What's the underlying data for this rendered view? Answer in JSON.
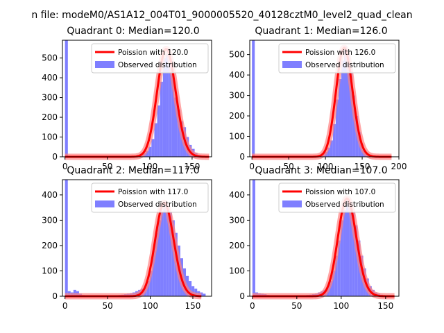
{
  "figure": {
    "suptitle": "n file: modeM0/AS1A12_004T01_9000005520_40128cztM0_level2_quad_clean"
  },
  "colors": {
    "hist": "#7f7fff",
    "poisson": "#ff0000",
    "poisson_glow": "#ff8080"
  },
  "chart_data": [
    {
      "type": "bar",
      "title": "Quadrant 0: Median=120.0",
      "legend": {
        "placement": "top-right",
        "line_label": "Poission with 120.0",
        "bar_label": "Observed distribution"
      },
      "xlim": [
        -3,
        173
      ],
      "ylim": [
        0,
        590
      ],
      "xticks": [
        0,
        50,
        100,
        150
      ],
      "yticks": [
        0,
        100,
        200,
        300,
        400,
        500
      ],
      "bin_width": 3.4,
      "hist": [
        [
          0,
          590
        ],
        [
          3.4,
          0
        ],
        [
          6.8,
          0
        ],
        [
          10.2,
          0
        ],
        [
          13.6,
          0
        ],
        [
          17,
          0
        ],
        [
          20.4,
          0
        ],
        [
          23.8,
          0
        ],
        [
          27.2,
          0
        ],
        [
          30.6,
          0
        ],
        [
          34,
          0
        ],
        [
          37.4,
          0
        ],
        [
          40.8,
          0
        ],
        [
          44.2,
          0
        ],
        [
          47.6,
          0
        ],
        [
          51,
          0
        ],
        [
          54.4,
          0
        ],
        [
          57.8,
          0
        ],
        [
          61.2,
          0
        ],
        [
          64.6,
          0
        ],
        [
          68,
          0
        ],
        [
          71.4,
          0
        ],
        [
          74.8,
          0
        ],
        [
          78.2,
          2
        ],
        [
          81.6,
          5
        ],
        [
          85,
          10
        ],
        [
          88.4,
          16
        ],
        [
          91.8,
          20
        ],
        [
          95.2,
          30
        ],
        [
          98.6,
          50
        ],
        [
          102,
          90
        ],
        [
          105.4,
          170
        ],
        [
          108.8,
          260
        ],
        [
          112.2,
          380
        ],
        [
          115.6,
          500
        ],
        [
          119,
          520
        ],
        [
          122.4,
          470
        ],
        [
          125.8,
          420
        ],
        [
          129.2,
          300
        ],
        [
          132.6,
          240
        ],
        [
          136,
          180
        ],
        [
          139.4,
          150
        ],
        [
          142.8,
          100
        ],
        [
          146.2,
          60
        ],
        [
          149.6,
          40
        ],
        [
          153,
          20
        ],
        [
          156.4,
          10
        ],
        [
          159.8,
          6
        ],
        [
          163.2,
          3
        ],
        [
          166.6,
          1
        ]
      ],
      "poisson_mean": 120.0,
      "poisson_total": 15000,
      "poisson_xrange": [
        0,
        170
      ]
    },
    {
      "type": "bar",
      "title": "Quadrant 1: Median=126.0",
      "legend": {
        "placement": "top-right",
        "line_label": "Poission with 126.0",
        "bar_label": "Observed distribution"
      },
      "xlim": [
        -3,
        200
      ],
      "ylim": [
        0,
        570
      ],
      "xticks": [
        0,
        50,
        100,
        150,
        200
      ],
      "yticks": [
        0,
        100,
        200,
        300,
        400,
        500
      ],
      "bin_width": 3.8,
      "hist": [
        [
          0,
          570
        ],
        [
          3.8,
          0
        ],
        [
          7.6,
          0
        ],
        [
          11.4,
          0
        ],
        [
          15.2,
          0
        ],
        [
          19,
          0
        ],
        [
          22.8,
          0
        ],
        [
          26.6,
          0
        ],
        [
          30.4,
          0
        ],
        [
          34.2,
          0
        ],
        [
          38,
          0
        ],
        [
          41.8,
          0
        ],
        [
          45.6,
          0
        ],
        [
          49.4,
          0
        ],
        [
          53.2,
          0
        ],
        [
          57,
          0
        ],
        [
          60.8,
          0
        ],
        [
          64.6,
          0
        ],
        [
          68.4,
          0
        ],
        [
          72.2,
          0
        ],
        [
          76,
          0
        ],
        [
          79.8,
          0
        ],
        [
          83.6,
          2
        ],
        [
          87.4,
          4
        ],
        [
          91.2,
          8
        ],
        [
          95,
          15
        ],
        [
          98.8,
          25
        ],
        [
          102.6,
          45
        ],
        [
          106.4,
          80
        ],
        [
          110.2,
          160
        ],
        [
          114,
          280
        ],
        [
          117.8,
          380
        ],
        [
          121.6,
          470
        ],
        [
          125.4,
          540
        ],
        [
          129.2,
          500
        ],
        [
          133,
          420
        ],
        [
          136.8,
          300
        ],
        [
          140.6,
          200
        ],
        [
          144.4,
          120
        ],
        [
          148.2,
          60
        ],
        [
          152,
          30
        ],
        [
          155.8,
          15
        ],
        [
          159.6,
          10
        ],
        [
          163.4,
          6
        ],
        [
          167.2,
          4
        ],
        [
          171,
          2
        ],
        [
          174.8,
          1
        ],
        [
          178.6,
          1
        ],
        [
          182.4,
          0
        ],
        [
          186.2,
          0
        ]
      ],
      "poisson_mean": 126.0,
      "poisson_total": 15000,
      "poisson_xrange": [
        0,
        190
      ]
    },
    {
      "type": "bar",
      "title": "Quadrant 2: Median=117.0",
      "legend": {
        "placement": "top-right",
        "line_label": "Poission with 117.0",
        "bar_label": "Observed distribution"
      },
      "xlim": [
        -3,
        172
      ],
      "ylim": [
        0,
        460
      ],
      "xticks": [
        0,
        50,
        100,
        150
      ],
      "yticks": [
        0,
        100,
        200,
        300,
        400
      ],
      "bin_width": 3.3,
      "hist": [
        [
          0,
          460
        ],
        [
          3.3,
          20
        ],
        [
          6.6,
          15
        ],
        [
          9.9,
          25
        ],
        [
          13.2,
          20
        ],
        [
          16.5,
          10
        ],
        [
          19.8,
          5
        ],
        [
          23.1,
          3
        ],
        [
          26.4,
          2
        ],
        [
          29.7,
          2
        ],
        [
          33,
          1
        ],
        [
          36.3,
          1
        ],
        [
          39.6,
          1
        ],
        [
          42.9,
          1
        ],
        [
          46.2,
          1
        ],
        [
          49.5,
          1
        ],
        [
          52.8,
          2
        ],
        [
          56.1,
          3
        ],
        [
          59.4,
          4
        ],
        [
          62.7,
          5
        ],
        [
          66,
          6
        ],
        [
          69.3,
          8
        ],
        [
          72.6,
          10
        ],
        [
          75.9,
          12
        ],
        [
          79.2,
          15
        ],
        [
          82.5,
          20
        ],
        [
          85.8,
          25
        ],
        [
          89.1,
          30
        ],
        [
          92.4,
          35
        ],
        [
          95.7,
          60
        ],
        [
          99,
          100
        ],
        [
          102.3,
          180
        ],
        [
          105.6,
          250
        ],
        [
          108.9,
          300
        ],
        [
          112.2,
          330
        ],
        [
          115.5,
          370
        ],
        [
          118.8,
          340
        ],
        [
          122.1,
          330
        ],
        [
          125.4,
          300
        ],
        [
          128.7,
          250
        ],
        [
          132,
          200
        ],
        [
          135.3,
          150
        ],
        [
          138.6,
          110
        ],
        [
          141.9,
          80
        ],
        [
          145.2,
          60
        ],
        [
          148.5,
          40
        ],
        [
          151.8,
          30
        ],
        [
          155.1,
          20
        ],
        [
          158.4,
          15
        ],
        [
          161.7,
          10
        ]
      ],
      "poisson_mean": 117.0,
      "poisson_total": 10000,
      "poisson_xrange": [
        0,
        160
      ]
    },
    {
      "type": "bar",
      "title": "Quadrant 3: Median=107.0",
      "legend": {
        "placement": "top-right",
        "line_label": "Poission with 107.0",
        "bar_label": "Observed distribution"
      },
      "xlim": [
        -3,
        165
      ],
      "ylim": [
        0,
        460
      ],
      "xticks": [
        0,
        50,
        100,
        150
      ],
      "yticks": [
        0,
        100,
        200,
        300,
        400
      ],
      "bin_width": 3.2,
      "hist": [
        [
          0,
          460
        ],
        [
          3.2,
          15
        ],
        [
          6.4,
          12
        ],
        [
          9.6,
          10
        ],
        [
          12.8,
          8
        ],
        [
          16,
          5
        ],
        [
          19.2,
          3
        ],
        [
          22.4,
          2
        ],
        [
          25.6,
          1
        ],
        [
          28.8,
          1
        ],
        [
          32,
          1
        ],
        [
          35.2,
          1
        ],
        [
          38.4,
          1
        ],
        [
          41.6,
          1
        ],
        [
          44.8,
          1
        ],
        [
          48,
          1
        ],
        [
          51.2,
          2
        ],
        [
          54.4,
          3
        ],
        [
          57.6,
          4
        ],
        [
          60.8,
          5
        ],
        [
          64,
          6
        ],
        [
          67.2,
          8
        ],
        [
          70.4,
          10
        ],
        [
          73.6,
          15
        ],
        [
          76.8,
          20
        ],
        [
          80,
          25
        ],
        [
          83.2,
          35
        ],
        [
          86.4,
          60
        ],
        [
          89.6,
          100
        ],
        [
          92.8,
          160
        ],
        [
          96,
          220
        ],
        [
          99.2,
          300
        ],
        [
          102.4,
          340
        ],
        [
          105.6,
          380
        ],
        [
          108.8,
          360
        ],
        [
          112,
          330
        ],
        [
          115.2,
          280
        ],
        [
          118.4,
          220
        ],
        [
          121.6,
          160
        ],
        [
          124.8,
          110
        ],
        [
          128,
          70
        ],
        [
          131.2,
          40
        ],
        [
          134.4,
          25
        ],
        [
          137.6,
          15
        ],
        [
          140.8,
          10
        ],
        [
          144,
          6
        ],
        [
          147.2,
          3
        ],
        [
          150.4,
          2
        ],
        [
          153.6,
          1
        ],
        [
          156.8,
          0
        ]
      ],
      "poisson_mean": 107.0,
      "poisson_total": 10000,
      "poisson_xrange": [
        0,
        160
      ]
    }
  ]
}
